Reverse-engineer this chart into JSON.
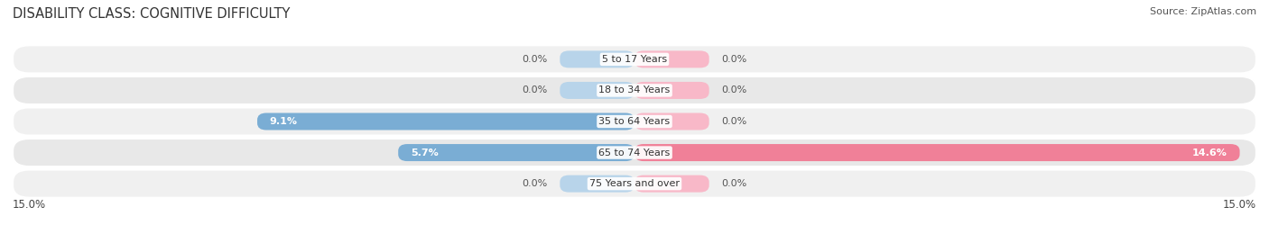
{
  "title": "DISABILITY CLASS: COGNITIVE DIFFICULTY",
  "source_text": "Source: ZipAtlas.com",
  "categories": [
    "5 to 17 Years",
    "18 to 34 Years",
    "35 to 64 Years",
    "65 to 74 Years",
    "75 Years and over"
  ],
  "male_values": [
    0.0,
    0.0,
    9.1,
    5.7,
    0.0
  ],
  "female_values": [
    0.0,
    0.0,
    0.0,
    14.6,
    0.0
  ],
  "male_color": "#7aadd4",
  "female_color": "#f08098",
  "male_color_light": "#b8d4ea",
  "female_color_light": "#f8b8c8",
  "row_color_1": "#f0f0f0",
  "row_color_2": "#e8e8e8",
  "xlim": 15.0,
  "axis_label_left": "15.0%",
  "axis_label_right": "15.0%",
  "title_fontsize": 10.5,
  "source_fontsize": 8,
  "label_fontsize": 8,
  "category_fontsize": 8,
  "legend_fontsize": 9,
  "bar_height": 0.55,
  "min_bar_width": 1.8
}
